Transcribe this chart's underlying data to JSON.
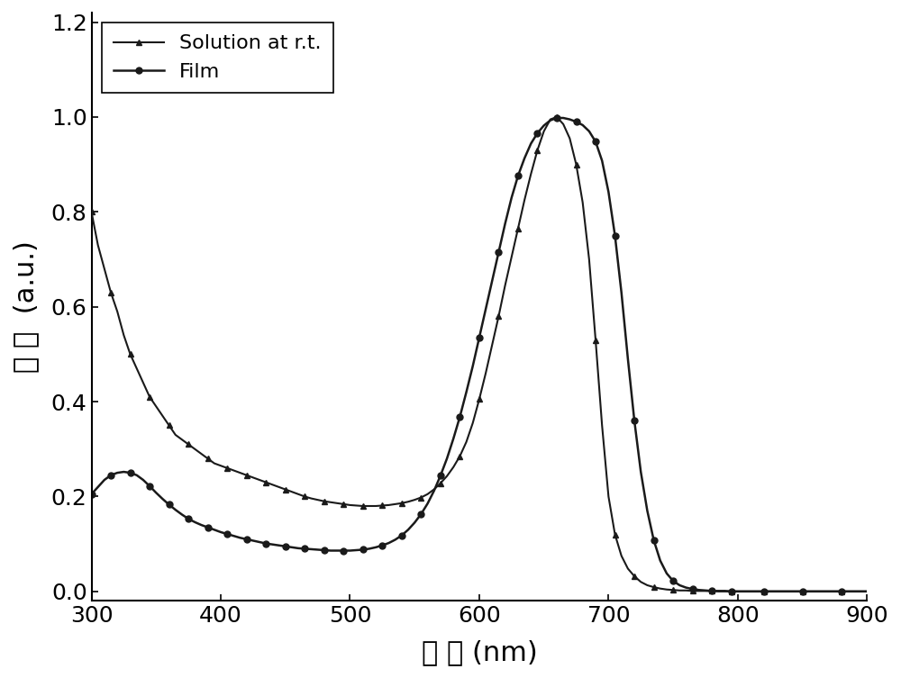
{
  "title": "",
  "xlabel": "波 长 (nm)",
  "ylabel": "吸 收  (a.u.)",
  "xlim": [
    300,
    900
  ],
  "ylim": [
    -0.02,
    1.22
  ],
  "xticks": [
    300,
    400,
    500,
    600,
    700,
    800,
    900
  ],
  "yticks": [
    0.0,
    0.2,
    0.4,
    0.6,
    0.8,
    1.0,
    1.2
  ],
  "legend": [
    "Solution at r.t.",
    "Film"
  ],
  "background_color": "#ffffff",
  "line_color": "#1a1a1a",
  "solution_x": [
    300,
    305,
    310,
    315,
    320,
    325,
    330,
    335,
    340,
    345,
    350,
    355,
    360,
    365,
    370,
    375,
    380,
    385,
    390,
    395,
    400,
    405,
    410,
    415,
    420,
    425,
    430,
    435,
    440,
    445,
    450,
    455,
    460,
    465,
    470,
    475,
    480,
    485,
    490,
    495,
    500,
    505,
    510,
    515,
    520,
    525,
    530,
    535,
    540,
    545,
    550,
    555,
    560,
    565,
    570,
    575,
    580,
    585,
    590,
    595,
    600,
    605,
    610,
    615,
    620,
    625,
    630,
    635,
    640,
    645,
    650,
    655,
    660,
    665,
    670,
    675,
    680,
    685,
    690,
    695,
    700,
    705,
    710,
    715,
    720,
    725,
    730,
    735,
    740,
    745,
    750,
    755,
    760,
    765,
    770,
    775,
    780,
    785,
    790,
    795,
    800,
    810,
    820,
    830,
    840,
    850,
    860,
    870,
    880,
    890,
    900
  ],
  "solution_y": [
    0.8,
    0.73,
    0.68,
    0.63,
    0.59,
    0.54,
    0.5,
    0.47,
    0.44,
    0.41,
    0.39,
    0.37,
    0.35,
    0.33,
    0.32,
    0.31,
    0.3,
    0.29,
    0.28,
    0.27,
    0.265,
    0.26,
    0.255,
    0.25,
    0.245,
    0.24,
    0.235,
    0.23,
    0.225,
    0.22,
    0.215,
    0.21,
    0.205,
    0.2,
    0.196,
    0.193,
    0.19,
    0.188,
    0.186,
    0.184,
    0.182,
    0.181,
    0.18,
    0.18,
    0.18,
    0.181,
    0.182,
    0.184,
    0.186,
    0.189,
    0.193,
    0.198,
    0.205,
    0.215,
    0.228,
    0.243,
    0.262,
    0.285,
    0.315,
    0.355,
    0.405,
    0.46,
    0.52,
    0.58,
    0.645,
    0.705,
    0.765,
    0.825,
    0.88,
    0.93,
    0.97,
    0.995,
    1.0,
    0.985,
    0.955,
    0.9,
    0.82,
    0.7,
    0.53,
    0.35,
    0.2,
    0.12,
    0.075,
    0.048,
    0.032,
    0.02,
    0.013,
    0.009,
    0.006,
    0.004,
    0.003,
    0.002,
    0.002,
    0.001,
    0.001,
    0.001,
    0.001,
    0.0,
    0.0,
    0.0,
    0.0,
    0.0,
    0.0,
    0.0,
    0.0,
    0.0,
    0.0,
    0.0,
    0.0,
    0.0,
    0.0
  ],
  "film_x": [
    300,
    305,
    310,
    315,
    320,
    325,
    330,
    335,
    340,
    345,
    350,
    355,
    360,
    365,
    370,
    375,
    380,
    385,
    390,
    395,
    400,
    405,
    410,
    415,
    420,
    425,
    430,
    435,
    440,
    445,
    450,
    455,
    460,
    465,
    470,
    475,
    480,
    485,
    490,
    495,
    500,
    505,
    510,
    515,
    520,
    525,
    530,
    535,
    540,
    545,
    550,
    555,
    560,
    565,
    570,
    575,
    580,
    585,
    590,
    595,
    600,
    605,
    610,
    615,
    620,
    625,
    630,
    635,
    640,
    645,
    650,
    655,
    660,
    665,
    670,
    675,
    680,
    685,
    690,
    695,
    700,
    705,
    710,
    715,
    720,
    725,
    730,
    735,
    740,
    745,
    750,
    755,
    760,
    765,
    770,
    775,
    780,
    785,
    790,
    795,
    800,
    810,
    820,
    830,
    840,
    850,
    860,
    870,
    880,
    890,
    900
  ],
  "film_y": [
    0.205,
    0.22,
    0.235,
    0.245,
    0.25,
    0.252,
    0.25,
    0.245,
    0.235,
    0.222,
    0.208,
    0.195,
    0.183,
    0.172,
    0.162,
    0.153,
    0.146,
    0.14,
    0.135,
    0.13,
    0.125,
    0.121,
    0.117,
    0.113,
    0.11,
    0.107,
    0.104,
    0.101,
    0.099,
    0.097,
    0.095,
    0.093,
    0.091,
    0.09,
    0.089,
    0.088,
    0.087,
    0.086,
    0.086,
    0.086,
    0.086,
    0.087,
    0.088,
    0.09,
    0.093,
    0.097,
    0.102,
    0.109,
    0.118,
    0.13,
    0.145,
    0.163,
    0.185,
    0.212,
    0.244,
    0.28,
    0.322,
    0.368,
    0.42,
    0.475,
    0.535,
    0.595,
    0.655,
    0.715,
    0.775,
    0.83,
    0.876,
    0.913,
    0.944,
    0.966,
    0.982,
    0.993,
    0.998,
    0.998,
    0.995,
    0.99,
    0.983,
    0.97,
    0.948,
    0.908,
    0.842,
    0.75,
    0.63,
    0.49,
    0.36,
    0.252,
    0.17,
    0.108,
    0.065,
    0.038,
    0.022,
    0.013,
    0.008,
    0.005,
    0.003,
    0.002,
    0.001,
    0.001,
    0.001,
    0.0,
    0.0,
    0.0,
    0.0,
    0.0,
    0.0,
    0.0,
    0.0,
    0.0,
    0.0,
    0.0,
    0.0
  ]
}
